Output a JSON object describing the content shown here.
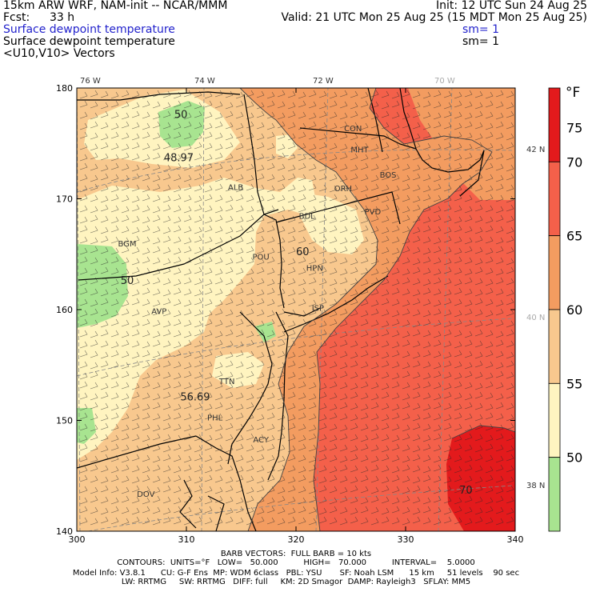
{
  "header": {
    "model_title": "15km ARW WRF, NAM-init -- NCAR/MMM",
    "init": "Init: 12 UTC Sun 24 Aug 25",
    "fcst_label": "Fcst:",
    "fcst_value": "33 h",
    "valid": "Valid: 21 UTC Mon 25 Aug 25 (15 MDT Mon 25 Aug 25)",
    "field1": "Surface dewpoint temperature",
    "field1_sm": "sm= 1",
    "field2": "Surface dewpoint temperature",
    "field2_sm": "sm= 1",
    "field3": "<U10,V10> Vectors"
  },
  "map": {
    "longitude_labels": [
      "76 W",
      "74 W",
      "72 W",
      "70 W"
    ],
    "latitude_labels": [
      "42 N",
      "40 N",
      "38 N"
    ],
    "x_ticks": [
      "300",
      "310",
      "320",
      "330",
      "340"
    ],
    "y_ticks": [
      "140",
      "150",
      "160",
      "170",
      "180"
    ],
    "x_range": [
      300,
      340
    ],
    "y_range": [
      140,
      180
    ],
    "stations": [
      {
        "id": "CON",
        "x": 325.2,
        "y": 176.1
      },
      {
        "id": "MHT",
        "x": 325.8,
        "y": 174.2
      },
      {
        "id": "BOS",
        "x": 328.4,
        "y": 171.9
      },
      {
        "id": "ALB",
        "x": 314.5,
        "y": 170.8
      },
      {
        "id": "ORH",
        "x": 324.3,
        "y": 170.7
      },
      {
        "id": "BDL",
        "x": 321.0,
        "y": 168.2
      },
      {
        "id": "PVD",
        "x": 327.0,
        "y": 168.6
      },
      {
        "id": "BGM",
        "x": 304.6,
        "y": 165.7
      },
      {
        "id": "POU",
        "x": 316.8,
        "y": 164.5
      },
      {
        "id": "HPN",
        "x": 321.7,
        "y": 163.5
      },
      {
        "id": "AVP",
        "x": 307.5,
        "y": 159.6
      },
      {
        "id": "ISP",
        "x": 322.0,
        "y": 159.9
      },
      {
        "id": "TTN",
        "x": 313.7,
        "y": 153.3
      },
      {
        "id": "PHL",
        "x": 312.6,
        "y": 150.0
      },
      {
        "id": "ACY",
        "x": 316.8,
        "y": 148.0
      },
      {
        "id": "DOV",
        "x": 306.3,
        "y": 143.1
      }
    ],
    "contour_labels": [
      {
        "text": "50",
        "x": 309.5,
        "y": 177.3
      },
      {
        "text": "48.97",
        "x": 309.3,
        "y": 173.4
      },
      {
        "text": "50",
        "x": 304.6,
        "y": 162.3
      },
      {
        "text": "60",
        "x": 320.6,
        "y": 164.9
      },
      {
        "text": "56.69",
        "x": 310.8,
        "y": 151.8
      },
      {
        "text": "70",
        "x": 335.5,
        "y": 143.4
      }
    ],
    "wind_barbs": "full barb = 10 kts"
  },
  "colorbar": {
    "unit": "°F",
    "labels": [
      "75",
      "70",
      "65",
      "60",
      "55",
      "50"
    ],
    "bands": [
      {
        "label": "75",
        "color": "#e31a1c"
      },
      {
        "label": "70",
        "color": "#f4604a"
      },
      {
        "label": "65",
        "color": "#f39c60"
      },
      {
        "label": "60",
        "color": "#f8c88e"
      },
      {
        "label": "55",
        "color": "#fff4c0"
      },
      {
        "label": "50",
        "color": "#a8e490"
      }
    ],
    "colors": {
      "below_50": "#a8e490",
      "50_55": "#fff4c0",
      "55_60": "#f8c88e",
      "60_65": "#f39c60",
      "65_70": "#f4604a",
      "70_75": "#e31a1c"
    }
  },
  "footer": {
    "line1": "BARB VECTORS:  FULL BARB = 10 kts",
    "line2": "CONTOURS:  UNITS=°F   LOW=   50.000          HIGH=   70.000          INTERVAL=    5.0000",
    "line3": "Model Info: V3.8.1      CU: G-F Ens  MP: WDM 6class   PBL: YSU       SF: Noah LSM      15 km     51 levels    90 sec",
    "line4": "LW: RRTMG     SW: RRTMG   DIFF: full     KM: 2D Smagor  DAMP: Rayleigh3   SFLAY: MM5"
  }
}
